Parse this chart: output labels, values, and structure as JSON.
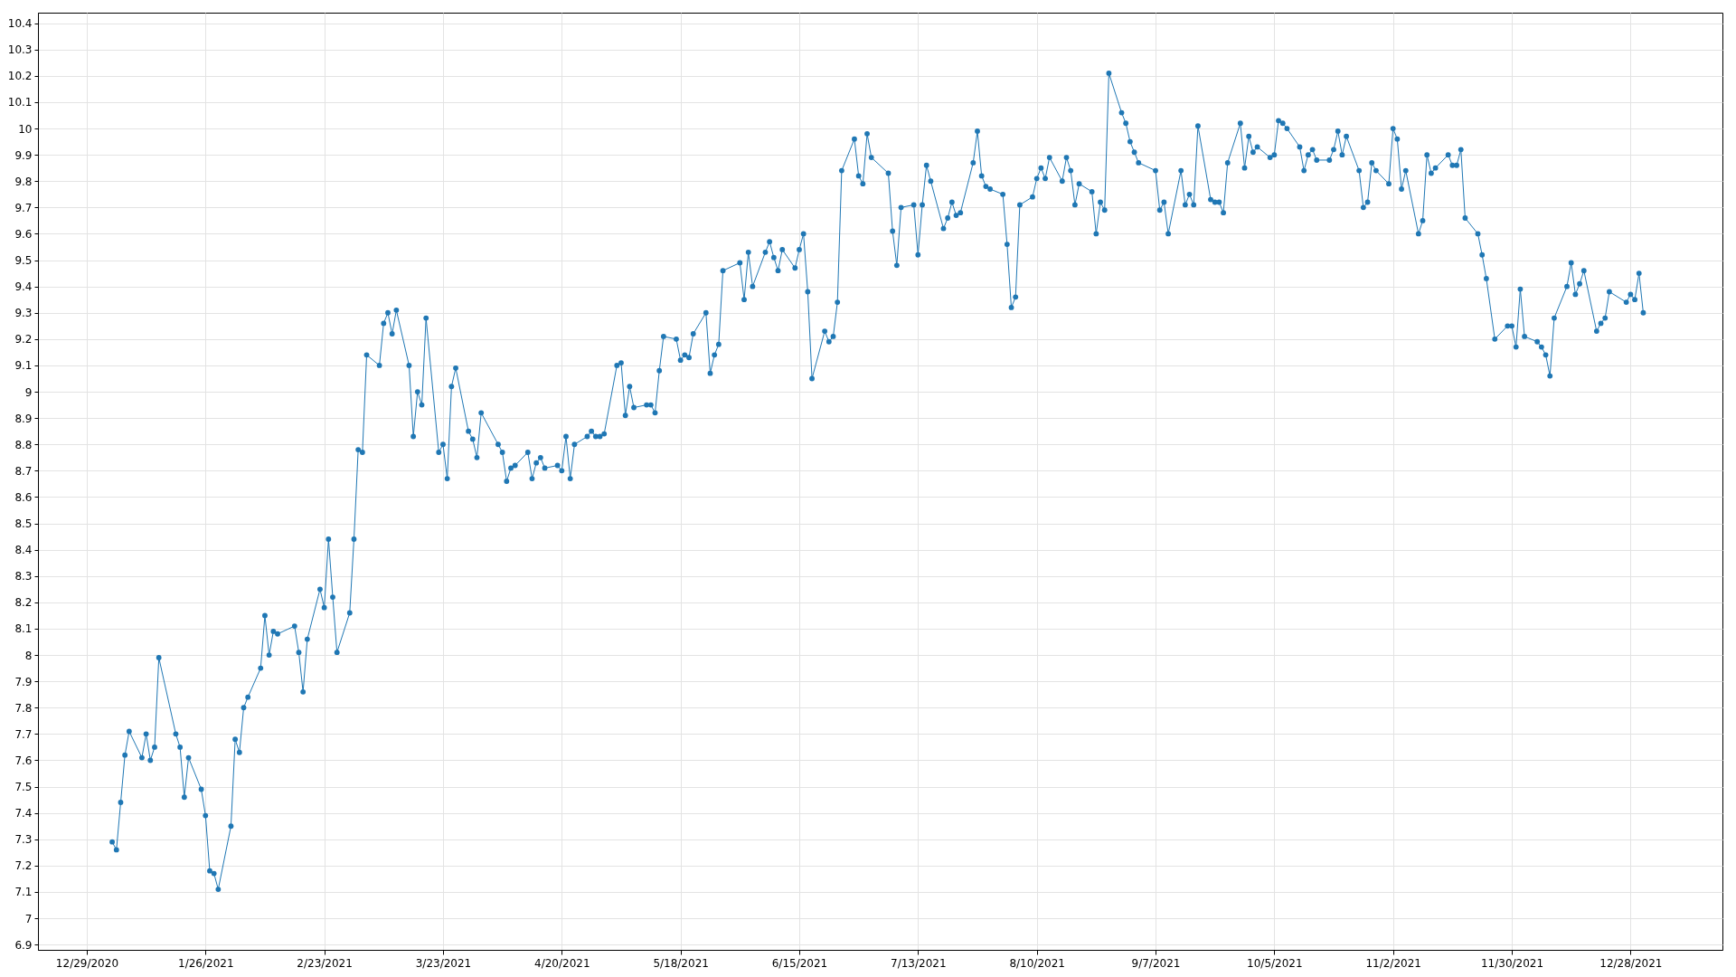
{
  "chart_data": {
    "type": "line",
    "x": [
      "2021-01-04",
      "2021-01-05",
      "2021-01-06",
      "2021-01-07",
      "2021-01-08",
      "2021-01-11",
      "2021-01-12",
      "2021-01-13",
      "2021-01-14",
      "2021-01-15",
      "2021-01-19",
      "2021-01-20",
      "2021-01-21",
      "2021-01-22",
      "2021-01-25",
      "2021-01-26",
      "2021-01-27",
      "2021-01-28",
      "2021-01-29",
      "2021-02-01",
      "2021-02-02",
      "2021-02-03",
      "2021-02-04",
      "2021-02-05",
      "2021-02-08",
      "2021-02-09",
      "2021-02-10",
      "2021-02-11",
      "2021-02-12",
      "2021-02-16",
      "2021-02-17",
      "2021-02-18",
      "2021-02-19",
      "2021-02-22",
      "2021-02-23",
      "2021-02-24",
      "2021-02-25",
      "2021-02-26",
      "2021-03-01",
      "2021-03-02",
      "2021-03-03",
      "2021-03-04",
      "2021-03-05",
      "2021-03-08",
      "2021-03-09",
      "2021-03-10",
      "2021-03-11",
      "2021-03-12",
      "2021-03-15",
      "2021-03-16",
      "2021-03-17",
      "2021-03-18",
      "2021-03-19",
      "2021-03-22",
      "2021-03-23",
      "2021-03-24",
      "2021-03-25",
      "2021-03-26",
      "2021-03-29",
      "2021-03-30",
      "2021-03-31",
      "2021-04-01",
      "2021-04-05",
      "2021-04-06",
      "2021-04-07",
      "2021-04-08",
      "2021-04-09",
      "2021-04-12",
      "2021-04-13",
      "2021-04-14",
      "2021-04-15",
      "2021-04-16",
      "2021-04-19",
      "2021-04-20",
      "2021-04-21",
      "2021-04-22",
      "2021-04-23",
      "2021-04-26",
      "2021-04-27",
      "2021-04-28",
      "2021-04-29",
      "2021-04-30",
      "2021-05-03",
      "2021-05-04",
      "2021-05-05",
      "2021-05-06",
      "2021-05-07",
      "2021-05-10",
      "2021-05-11",
      "2021-05-12",
      "2021-05-13",
      "2021-05-14",
      "2021-05-17",
      "2021-05-18",
      "2021-05-19",
      "2021-05-20",
      "2021-05-21",
      "2021-05-24",
      "2021-05-25",
      "2021-05-26",
      "2021-05-27",
      "2021-05-28",
      "2021-06-01",
      "2021-06-02",
      "2021-06-03",
      "2021-06-04",
      "2021-06-07",
      "2021-06-08",
      "2021-06-09",
      "2021-06-10",
      "2021-06-11",
      "2021-06-14",
      "2021-06-15",
      "2021-06-16",
      "2021-06-17",
      "2021-06-18",
      "2021-06-21",
      "2021-06-22",
      "2021-06-23",
      "2021-06-24",
      "2021-06-25",
      "2021-06-28",
      "2021-06-29",
      "2021-06-30",
      "2021-07-01",
      "2021-07-02",
      "2021-07-06",
      "2021-07-07",
      "2021-07-08",
      "2021-07-09",
      "2021-07-12",
      "2021-07-13",
      "2021-07-14",
      "2021-07-15",
      "2021-07-16",
      "2021-07-19",
      "2021-07-20",
      "2021-07-21",
      "2021-07-22",
      "2021-07-23",
      "2021-07-26",
      "2021-07-27",
      "2021-07-28",
      "2021-07-29",
      "2021-07-30",
      "2021-08-02",
      "2021-08-03",
      "2021-08-04",
      "2021-08-05",
      "2021-08-06",
      "2021-08-09",
      "2021-08-10",
      "2021-08-11",
      "2021-08-12",
      "2021-08-13",
      "2021-08-16",
      "2021-08-17",
      "2021-08-18",
      "2021-08-19",
      "2021-08-20",
      "2021-08-23",
      "2021-08-24",
      "2021-08-25",
      "2021-08-26",
      "2021-08-27",
      "2021-08-30",
      "2021-08-31",
      "2021-09-01",
      "2021-09-02",
      "2021-09-03",
      "2021-09-07",
      "2021-09-08",
      "2021-09-09",
      "2021-09-10",
      "2021-09-13",
      "2021-09-14",
      "2021-09-15",
      "2021-09-16",
      "2021-09-17",
      "2021-09-20",
      "2021-09-21",
      "2021-09-22",
      "2021-09-23",
      "2021-09-24",
      "2021-09-27",
      "2021-09-28",
      "2021-09-29",
      "2021-09-30",
      "2021-10-01",
      "2021-10-04",
      "2021-10-05",
      "2021-10-06",
      "2021-10-07",
      "2021-10-08",
      "2021-10-11",
      "2021-10-12",
      "2021-10-13",
      "2021-10-14",
      "2021-10-15",
      "2021-10-18",
      "2021-10-19",
      "2021-10-20",
      "2021-10-21",
      "2021-10-22",
      "2021-10-25",
      "2021-10-26",
      "2021-10-27",
      "2021-10-28",
      "2021-10-29",
      "2021-11-01",
      "2021-11-02",
      "2021-11-03",
      "2021-11-04",
      "2021-11-05",
      "2021-11-08",
      "2021-11-09",
      "2021-11-10",
      "2021-11-11",
      "2021-11-12",
      "2021-11-15",
      "2021-11-16",
      "2021-11-17",
      "2021-11-18",
      "2021-11-19",
      "2021-11-22",
      "2021-11-23",
      "2021-11-24",
      "2021-11-26",
      "2021-11-29",
      "2021-11-30",
      "2021-12-01",
      "2021-12-02",
      "2021-12-03",
      "2021-12-06",
      "2021-12-07",
      "2021-12-08",
      "2021-12-09",
      "2021-12-10",
      "2021-12-13",
      "2021-12-14",
      "2021-12-15",
      "2021-12-16",
      "2021-12-17",
      "2021-12-20",
      "2021-12-21",
      "2021-12-22",
      "2021-12-23",
      "2021-12-27",
      "2021-12-28",
      "2021-12-29",
      "2021-12-30",
      "2021-12-31"
    ],
    "series": [
      {
        "color": "#1f77b4",
        "values": [
          7.29,
          7.26,
          7.44,
          7.62,
          7.71,
          7.61,
          7.7,
          7.6,
          7.65,
          7.99,
          7.7,
          7.65,
          7.46,
          7.61,
          7.49,
          7.39,
          7.18,
          7.17,
          7.11,
          7.35,
          7.68,
          7.63,
          7.8,
          7.84,
          7.95,
          8.15,
          8.0,
          8.09,
          8.08,
          8.11,
          8.01,
          7.86,
          8.06,
          8.25,
          8.18,
          8.44,
          8.22,
          8.01,
          8.16,
          8.44,
          8.78,
          8.77,
          9.14,
          9.1,
          9.26,
          9.3,
          9.22,
          9.31,
          9.1,
          8.83,
          9.0,
          8.95,
          9.28,
          8.77,
          8.8,
          8.67,
          9.02,
          9.09,
          8.85,
          8.82,
          8.75,
          8.92,
          8.8,
          8.77,
          8.66,
          8.71,
          8.72,
          8.77,
          8.67,
          8.73,
          8.75,
          8.71,
          8.72,
          8.7,
          8.83,
          8.67,
          8.8,
          8.83,
          8.85,
          8.83,
          8.83,
          8.84,
          9.1,
          9.11,
          8.91,
          9.02,
          8.94,
          8.95,
          8.95,
          8.92,
          9.08,
          9.21,
          9.2,
          9.12,
          9.14,
          9.13,
          9.22,
          9.3,
          9.07,
          9.14,
          9.18,
          9.46,
          9.49,
          9.35,
          9.53,
          9.4,
          9.53,
          9.57,
          9.51,
          9.46,
          9.54,
          9.47,
          9.54,
          9.6,
          9.38,
          9.05,
          9.23,
          9.19,
          9.21,
          9.34,
          9.84,
          9.96,
          9.82,
          9.79,
          9.98,
          9.89,
          9.83,
          9.61,
          9.48,
          9.7,
          9.71,
          9.52,
          9.71,
          9.86,
          9.8,
          9.62,
          9.66,
          9.72,
          9.67,
          9.68,
          9.87,
          9.99,
          9.82,
          9.78,
          9.77,
          9.75,
          9.56,
          9.32,
          9.36,
          9.71,
          9.74,
          9.81,
          9.85,
          9.81,
          9.89,
          9.8,
          9.89,
          9.84,
          9.71,
          9.79,
          9.76,
          9.6,
          9.72,
          9.69,
          10.21,
          10.06,
          10.02,
          9.95,
          9.91,
          9.87,
          9.84,
          9.69,
          9.72,
          9.6,
          9.84,
          9.71,
          9.75,
          9.71,
          10.01,
          9.73,
          9.72,
          9.72,
          9.68,
          9.87,
          10.02,
          9.85,
          9.97,
          9.91,
          9.93,
          9.89,
          9.9,
          10.03,
          10.02,
          10.0,
          9.93,
          9.84,
          9.9,
          9.92,
          9.88,
          9.88,
          9.92,
          9.99,
          9.9,
          9.97,
          9.84,
          9.7,
          9.72,
          9.87,
          9.84,
          9.79,
          10.0,
          9.96,
          9.77,
          9.84,
          9.6,
          9.65,
          9.9,
          9.83,
          9.85,
          9.9,
          9.86,
          9.86,
          9.92,
          9.66,
          9.6,
          9.52,
          9.43,
          9.2,
          9.25,
          9.25,
          9.17,
          9.39,
          9.21,
          9.19,
          9.17,
          9.14,
          9.06,
          9.28,
          9.4,
          9.49,
          9.37,
          9.41,
          9.46,
          9.23,
          9.26,
          9.28,
          9.38,
          9.34,
          9.37,
          9.35,
          9.45,
          9.3
        ]
      }
    ],
    "xlim": [
      "2020-12-17T12:00",
      "2022-01-18T16:00"
    ],
    "xticks": [
      {
        "value": "2020-12-29",
        "label": "12/29/2020"
      },
      {
        "value": "2021-01-26",
        "label": "1/26/2021"
      },
      {
        "value": "2021-02-23",
        "label": "2/23/2021"
      },
      {
        "value": "2021-03-23",
        "label": "3/23/2021"
      },
      {
        "value": "2021-04-20",
        "label": "4/20/2021"
      },
      {
        "value": "2021-05-18",
        "label": "5/18/2021"
      },
      {
        "value": "2021-06-15",
        "label": "6/15/2021"
      },
      {
        "value": "2021-07-13",
        "label": "7/13/2021"
      },
      {
        "value": "2021-08-10",
        "label": "8/10/2021"
      },
      {
        "value": "2021-09-07",
        "label": "9/7/2021"
      },
      {
        "value": "2021-10-05",
        "label": "10/5/2021"
      },
      {
        "value": "2021-11-02",
        "label": "11/2/2021"
      },
      {
        "value": "2021-11-30",
        "label": "11/30/2021"
      },
      {
        "value": "2021-12-28",
        "label": "12/28/2021"
      }
    ],
    "ylim": [
      6.88,
      10.44
    ],
    "yticks": [
      6.9,
      7,
      7.1,
      7.2,
      7.3,
      7.4,
      7.5,
      7.6,
      7.7,
      7.8,
      7.9,
      8,
      8.1,
      8.2,
      8.3,
      8.4,
      8.5,
      8.6,
      8.7,
      8.8,
      8.9,
      9,
      9.1,
      9.2,
      9.3,
      9.4,
      9.5,
      9.6,
      9.7,
      9.8,
      9.9,
      10,
      10.1,
      10.2,
      10.3,
      10.4
    ],
    "grid": true,
    "marker": "circle",
    "line_style": "solid"
  }
}
